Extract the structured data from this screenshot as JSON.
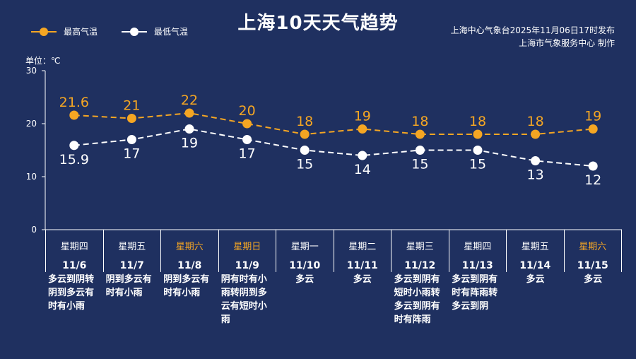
{
  "title": "上海10天天气趋势",
  "source_lines": [
    "上海中心气象台2025年11月06日17时发布",
    "上海市气象服务中心  制作"
  ],
  "unit_label": "单位：℃",
  "colors": {
    "background": "#1f3060",
    "high": "#f5a623",
    "low": "#ffffff",
    "weekend": "#f5a623"
  },
  "legend": [
    {
      "label": "最高气温",
      "color": "#f5a623"
    },
    {
      "label": "最低气温",
      "color": "#ffffff"
    }
  ],
  "days": [
    {
      "weekday": "星期四",
      "date": "11/6",
      "weekend": false,
      "desc": "多云到阴转阴到多云有时有小雨"
    },
    {
      "weekday": "星期五",
      "date": "11/7",
      "weekend": false,
      "desc": "阴到多云有时有小雨"
    },
    {
      "weekday": "星期六",
      "date": "11/8",
      "weekend": true,
      "desc": "阴到多云有时有小雨"
    },
    {
      "weekday": "星期日",
      "date": "11/9",
      "weekend": true,
      "desc": "阴有时有小雨转阴到多云有短时小雨"
    },
    {
      "weekday": "星期一",
      "date": "11/10",
      "weekend": false,
      "desc": "多云"
    },
    {
      "weekday": "星期二",
      "date": "11/11",
      "weekend": false,
      "desc": "多云"
    },
    {
      "weekday": "星期三",
      "date": "11/12",
      "weekend": false,
      "desc": "多云到阴有短时小雨转多云到阴有时有阵雨"
    },
    {
      "weekday": "星期四",
      "date": "11/13",
      "weekend": false,
      "desc": "多云到阴有时有阵雨转多云到阴"
    },
    {
      "weekday": "星期五",
      "date": "11/14",
      "weekend": false,
      "desc": "多云"
    },
    {
      "weekday": "星期六",
      "date": "11/15",
      "weekend": true,
      "desc": "多云"
    }
  ],
  "chart_data": {
    "type": "line",
    "categories": [
      "11/6",
      "11/7",
      "11/8",
      "11/9",
      "11/10",
      "11/11",
      "11/12",
      "11/13",
      "11/14",
      "11/15"
    ],
    "series": [
      {
        "name": "最高气温",
        "values": [
          21.6,
          21,
          22,
          20,
          18,
          19,
          18,
          18,
          18,
          19
        ],
        "labels": [
          "21.6",
          "21",
          "22",
          "20",
          "18",
          "19",
          "18",
          "18",
          "18",
          "19"
        ]
      },
      {
        "name": "最低气温",
        "values": [
          15.9,
          17,
          19,
          17,
          15,
          14,
          15,
          15,
          13,
          12
        ],
        "labels": [
          "15.9",
          "17",
          "19",
          "17",
          "15",
          "14",
          "15",
          "15",
          "13",
          "12"
        ]
      }
    ],
    "ylabel": "单位：℃",
    "yticks": [
      0,
      10,
      20,
      30
    ],
    "ylim": [
      0,
      30
    ],
    "line_style": "dashed",
    "grid": false,
    "legend_position": "top-left"
  }
}
